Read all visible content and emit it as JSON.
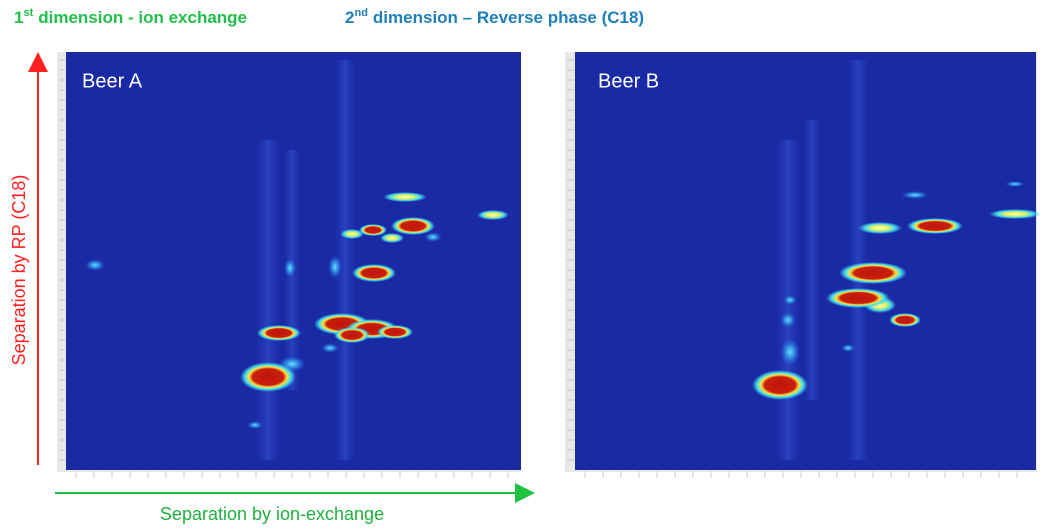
{
  "header": {
    "first": {
      "number": "1",
      "suffix": "st",
      "text": "dimension - ion exchange"
    },
    "second": {
      "number": "2",
      "suffix": "nd",
      "text": "dimension – Reverse phase (C18)"
    }
  },
  "panels": [
    "Beer A",
    "Beer B"
  ],
  "y_axis_label": "Separation by RP (C18)",
  "x_axis_label": "Separation by ion-exchange"
}
